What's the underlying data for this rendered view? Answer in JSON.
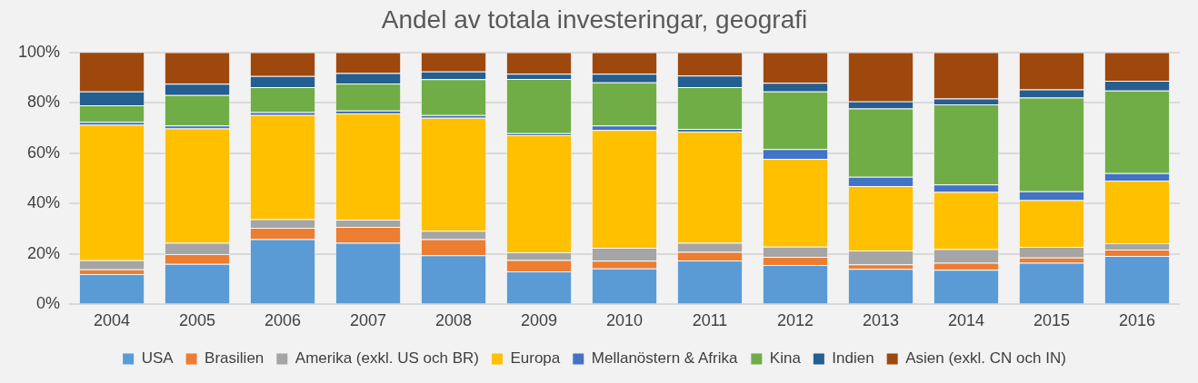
{
  "chart_data": {
    "type": "bar",
    "title": "Andel av totala investeringar, geografi",
    "stacked": true,
    "categories": [
      "2004",
      "2005",
      "2006",
      "2007",
      "2008",
      "2009",
      "2010",
      "2011",
      "2012",
      "2013",
      "2014",
      "2015",
      "2016"
    ],
    "ylim": [
      0,
      100
    ],
    "yticks": [
      {
        "value": 0,
        "label": "0%"
      },
      {
        "value": 20,
        "label": "20%"
      },
      {
        "value": 40,
        "label": "40%"
      },
      {
        "value": 60,
        "label": "60%"
      },
      {
        "value": 80,
        "label": "80%"
      },
      {
        "value": 100,
        "label": "100%"
      }
    ],
    "grid": "y",
    "legend": "bottom",
    "series": [
      {
        "name": "USA",
        "color": "#5b9bd5",
        "values": [
          12,
          16.1,
          25.9,
          24.4,
          19.5,
          13.1,
          14.3,
          17.4,
          15.6,
          14.1,
          13.7,
          16.5,
          19.2
        ]
      },
      {
        "name": "Brasilien",
        "color": "#ed7d31",
        "values": [
          1.9,
          3.8,
          4.5,
          6.3,
          6.4,
          4.5,
          3.0,
          3.4,
          3.3,
          1.8,
          2.8,
          2.1,
          2.5
        ]
      },
      {
        "name": "Amerika (exkl. US och BR)",
        "color": "#a5a5a5",
        "values": [
          3.6,
          4.5,
          3.4,
          2.9,
          3.3,
          3.1,
          5.2,
          3.6,
          4.0,
          5.5,
          5.4,
          4.2,
          2.6
        ]
      },
      {
        "name": "Europa",
        "color": "#ffc000",
        "values": [
          53.7,
          45.4,
          41.3,
          42.1,
          44.8,
          46.4,
          46.7,
          44.1,
          34.8,
          25.5,
          22.7,
          18.6,
          24.8
        ]
      },
      {
        "name": "Mellanöstern & Afrika",
        "color": "#4472c4",
        "values": [
          1.2,
          1.2,
          1.2,
          1.2,
          1.1,
          0.8,
          1.8,
          1.1,
          3.9,
          3.7,
          3.0,
          3.5,
          3.0
        ]
      },
      {
        "name": "Kina",
        "color": "#70ad47",
        "values": [
          6.6,
          12.0,
          9.9,
          10.7,
          14.2,
          21.5,
          17.1,
          16.6,
          22.9,
          27.1,
          31.7,
          37.1,
          32.7
        ]
      },
      {
        "name": "Indien",
        "color": "#255e91",
        "values": [
          5.5,
          4.5,
          4.4,
          4.2,
          3.1,
          2.1,
          3.4,
          4.6,
          3.4,
          2.8,
          2.4,
          3.3,
          3.9
        ]
      },
      {
        "name": "Asien (exkl. CN och IN)",
        "color": "#9e480e",
        "values": [
          15.6,
          12.5,
          9.4,
          8.2,
          7.6,
          8.5,
          8.5,
          9.2,
          12.1,
          19.5,
          18.3,
          14.7,
          11.3
        ]
      }
    ]
  }
}
